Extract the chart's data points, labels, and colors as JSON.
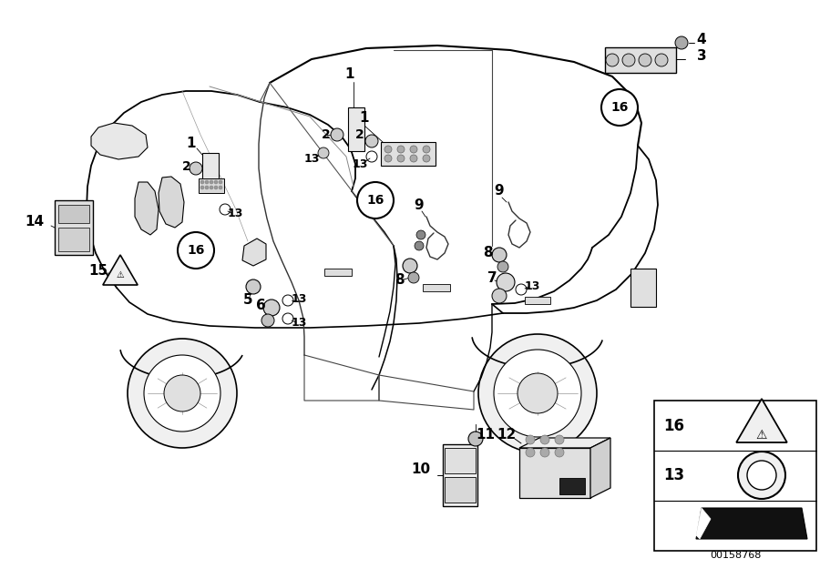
{
  "background_color": "#ffffff",
  "line_color": "#000000",
  "fig_width": 9.0,
  "fig_height": 6.36,
  "diagram_number": "00158768",
  "gray_light": "#c8c8c8",
  "gray_mid": "#aaaaaa",
  "gray_dark": "#888888",
  "car_body_lw": 1.0,
  "label_fontsize": 10,
  "small_label_fontsize": 8
}
